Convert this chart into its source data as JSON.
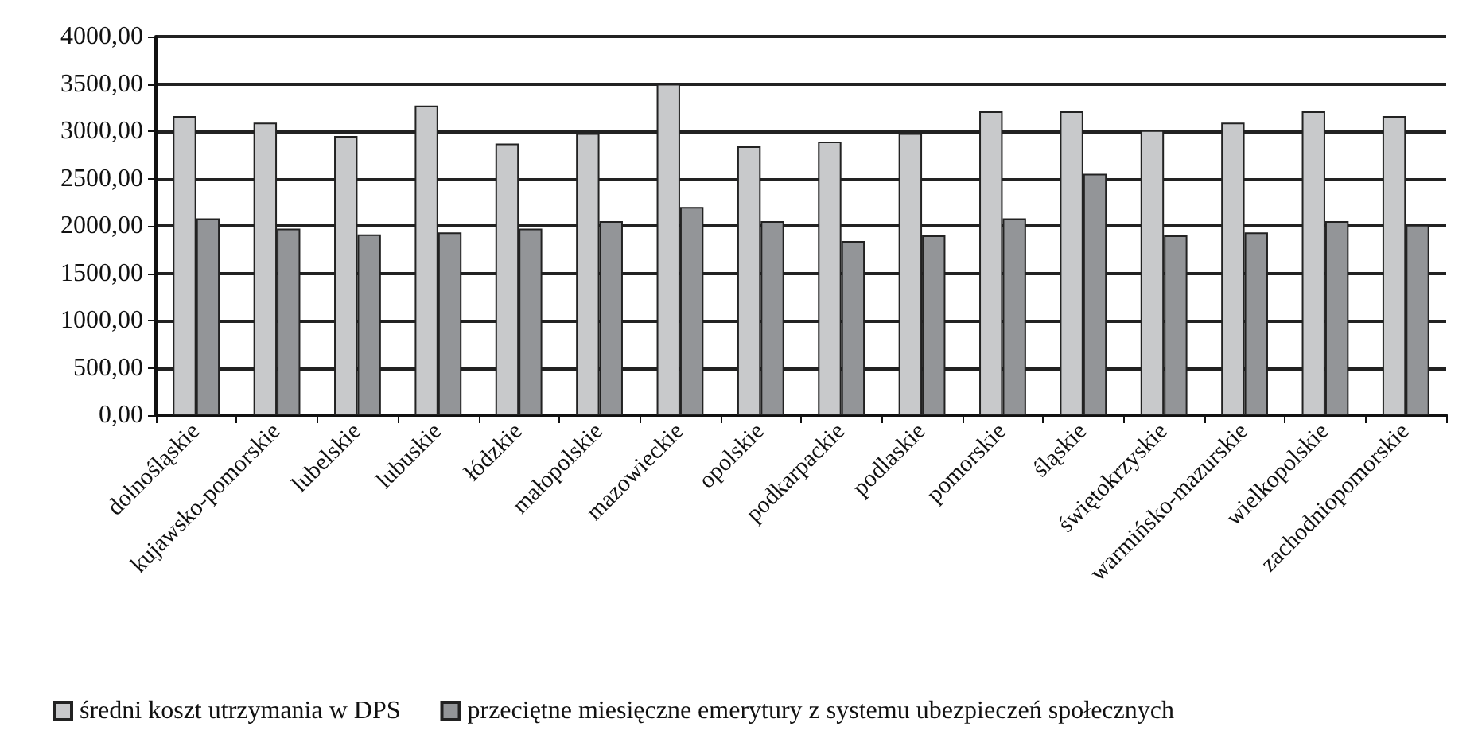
{
  "chart_data": {
    "type": "bar",
    "categories": [
      "dolnośląskie",
      "kujawsko-pomorskie",
      "lubelskie",
      "lubuskie",
      "łódzkie",
      "małopolskie",
      "mazowieckie",
      "opolskie",
      "podkarpackie",
      "podlaskie",
      "pomorskie",
      "śląskie",
      "świętokrzyskie",
      "warmińsko-mazurskie",
      "wielkopolskie",
      "zachodniopomorskie"
    ],
    "series": [
      {
        "name": "średni koszt utrzymania w DPS",
        "color": "#c8c9cb",
        "values": [
          3160,
          3090,
          2950,
          3270,
          2870,
          2980,
          3500,
          2840,
          2890,
          2980,
          3210,
          3210,
          3010,
          3090,
          3210,
          3160
        ]
      },
      {
        "name": "przeciętne miesięczne emerytury z systemu ubezpieczeń społecznych",
        "color": "#939598",
        "values": [
          2080,
          1970,
          1910,
          1930,
          1970,
          2050,
          2200,
          2050,
          1840,
          1900,
          2080,
          2550,
          1900,
          1930,
          2050,
          2010
        ]
      }
    ],
    "ylim": [
      0,
      4000
    ],
    "yticks": [
      {
        "value": 0,
        "label": "0,00"
      },
      {
        "value": 500,
        "label": "500,00"
      },
      {
        "value": 1000,
        "label": "1000,00"
      },
      {
        "value": 1500,
        "label": "1500,00"
      },
      {
        "value": 2000,
        "label": "2000,00"
      },
      {
        "value": 2500,
        "label": "2500,00"
      },
      {
        "value": 3000,
        "label": "3000,00"
      },
      {
        "value": 3500,
        "label": "3500,00"
      },
      {
        "value": 4000,
        "label": "4000,00"
      }
    ],
    "grid": "y",
    "legend": "bottom"
  }
}
